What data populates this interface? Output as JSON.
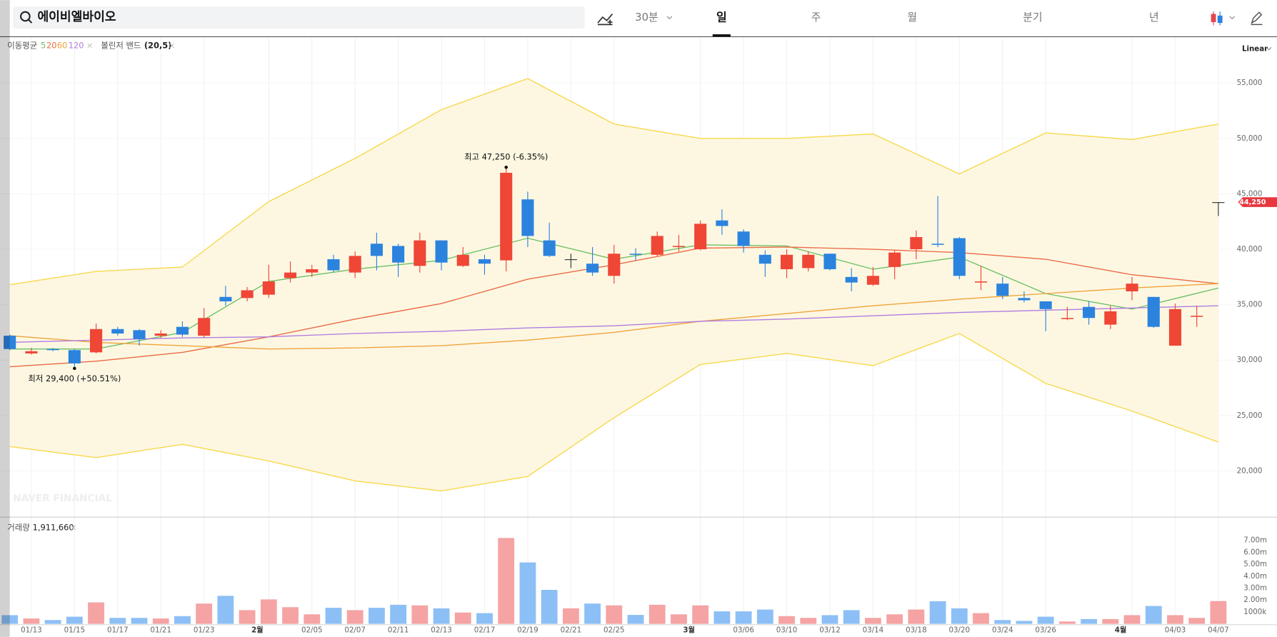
{
  "header": {
    "search": "에이비엘바이오",
    "tabs": [
      "30분",
      "일",
      "주",
      "월",
      "분기",
      "년"
    ],
    "active_tab": 1
  },
  "chart_data": {
    "type": "candlestick",
    "ma_label": "이동평균",
    "scale_label": "Linear",
    "watermark": "NAVER FINANCIAL",
    "categories": [
      null,
      "01/13",
      null,
      "01/15",
      null,
      "01/17",
      null,
      "01/21",
      null,
      "01/23",
      null,
      null,
      "2월",
      null,
      "02/05",
      null,
      "02/07",
      null,
      "02/11",
      null,
      "02/13",
      null,
      "02/17",
      null,
      "02/19",
      null,
      "02/21",
      null,
      "02/25",
      null,
      null,
      null,
      "3월",
      null,
      "03/06",
      null,
      "03/10",
      null,
      "03/12",
      null,
      "03/14",
      null,
      "03/18",
      null,
      "03/20",
      null,
      "03/24",
      null,
      "03/26",
      null,
      null,
      null,
      "4월",
      null,
      "04/03",
      null,
      "04/07"
    ],
    "open": [
      32200,
      30600,
      31000,
      30900,
      30700,
      32800,
      32700,
      32200,
      33000,
      32200,
      35700,
      35600,
      35900,
      37400,
      37900,
      39100,
      37900,
      40500,
      40300,
      38500,
      40800,
      38500,
      39100,
      39000,
      44500,
      40800,
      39100,
      38700,
      37600,
      39600,
      39500,
      40200,
      40000,
      42600,
      41600,
      39500,
      38200,
      38300,
      39600,
      37500,
      36800,
      38400,
      40000,
      40500,
      41000,
      37000,
      36900,
      35600,
      35300,
      33700,
      34800,
      33200,
      36200,
      35700,
      31300,
      33900,
      44250
    ],
    "high": [
      32300,
      31100,
      31100,
      31000,
      33300,
      33000,
      32800,
      32700,
      33500,
      34700,
      36700,
      36600,
      38600,
      38900,
      38600,
      39500,
      39800,
      41500,
      40500,
      41500,
      40800,
      40200,
      39500,
      47250,
      45200,
      42400,
      39600,
      40200,
      40400,
      40100,
      41600,
      41300,
      42600,
      43600,
      41800,
      39900,
      40000,
      39800,
      39600,
      38300,
      38400,
      39900,
      41700,
      44800,
      41100,
      38500,
      37500,
      36200,
      35300,
      34800,
      35300,
      34900,
      37500,
      35700,
      35100,
      34900,
      44250
    ],
    "low": [
      30900,
      30500,
      30800,
      29400,
      30600,
      32200,
      31300,
      32000,
      32100,
      32000,
      34900,
      35300,
      35600,
      37000,
      37500,
      37900,
      37400,
      38100,
      37500,
      37900,
      38100,
      38400,
      37700,
      38000,
      40200,
      39300,
      38300,
      37600,
      36900,
      39000,
      39400,
      39800,
      39900,
      41300,
      39700,
      37500,
      37400,
      38000,
      38100,
      36200,
      36700,
      37300,
      39100,
      40200,
      37300,
      36300,
      35500,
      35200,
      32600,
      33600,
      33200,
      32800,
      35400,
      32900,
      31300,
      33000,
      43000
    ],
    "close": [
      31000,
      30800,
      30900,
      29700,
      32800,
      32400,
      31900,
      32400,
      32300,
      33800,
      35300,
      36300,
      37100,
      37900,
      38200,
      38100,
      39400,
      39400,
      38800,
      40800,
      38800,
      39500,
      38700,
      46900,
      41200,
      39400,
      39100,
      37900,
      39600,
      39500,
      41200,
      40300,
      42300,
      42100,
      40300,
      38700,
      39500,
      39500,
      38200,
      37000,
      37600,
      39700,
      41100,
      40400,
      37600,
      37100,
      35800,
      35400,
      34600,
      33800,
      33800,
      34400,
      36900,
      33000,
      34600,
      34000,
      44250
    ],
    "up_color": "#ef4636",
    "down_color": "#2b83de",
    "flat_color": "#333333",
    "ylim": [
      15900,
      59100
    ],
    "yticks": [
      {
        "value": 20000,
        "label": "20,000"
      },
      {
        "value": 25000,
        "label": "25,000"
      },
      {
        "value": 30000,
        "label": "30,000"
      },
      {
        "value": 35000,
        "label": "35,000"
      },
      {
        "value": 40000,
        "label": "40,000"
      },
      {
        "value": 45000,
        "label": "45,000"
      },
      {
        "value": 50000,
        "label": "50,000"
      },
      {
        "value": 55000,
        "label": "55,000"
      }
    ],
    "grid": true,
    "last_price": {
      "value": 44250,
      "label": "44,250"
    },
    "high_mark": {
      "index": 23,
      "label": "최고 47,250 (-6.35%)"
    },
    "low_mark": {
      "index": 3,
      "label": "최저 29,400 (+50.51%)"
    },
    "overlay_x": [
      0,
      4,
      8,
      12,
      16,
      20,
      24,
      28,
      32,
      36,
      40,
      44,
      48,
      52,
      56
    ],
    "moving_averages": [
      {
        "name": "5",
        "color": "#6cc064",
        "values": [
          31000,
          31000,
          32500,
          37100,
          38200,
          39000,
          41000,
          39100,
          40400,
          40300,
          38200,
          39300,
          36000,
          34600,
          36500
        ]
      },
      {
        "name": "20",
        "color": "#ec6a45",
        "values": [
          29400,
          29900,
          30700,
          32100,
          33700,
          35100,
          37300,
          38600,
          40100,
          40200,
          40000,
          39700,
          39100,
          37700,
          36900
        ]
      },
      {
        "name": "60",
        "color": "#f0a43a",
        "values": [
          32200,
          31600,
          31300,
          31000,
          31100,
          31300,
          31800,
          32500,
          33500,
          34200,
          34900,
          35500,
          36000,
          36500,
          36900
        ]
      },
      {
        "name": "120",
        "color": "#b07ddf",
        "values": [
          31600,
          31800,
          32000,
          32100,
          32400,
          32600,
          32900,
          33100,
          33500,
          33700,
          34000,
          34300,
          34500,
          34700,
          34900
        ]
      }
    ],
    "bollinger": {
      "name": "볼린저 밴드",
      "params": "(20,5)",
      "color": "#f7d84a",
      "fill": "#fdf7e2",
      "upper": [
        36800,
        38000,
        38400,
        44300,
        48200,
        52600,
        55400,
        51300,
        50000,
        50000,
        50400,
        46800,
        50500,
        49900,
        51300
      ],
      "lower": [
        22200,
        21200,
        22400,
        20900,
        19100,
        18200,
        19500,
        24800,
        29600,
        30600,
        29500,
        32400,
        27900,
        25400,
        22600
      ]
    },
    "volume": {
      "label": "거래량",
      "last_label": "1,911,660",
      "up_color": "#f5a3a3",
      "down_color": "#8cbff5",
      "values": [
        0.73,
        0.45,
        0.32,
        0.6,
        1.8,
        0.5,
        0.5,
        0.45,
        0.65,
        1.7,
        2.35,
        1.15,
        2.05,
        1.4,
        0.8,
        1.35,
        1.15,
        1.35,
        1.6,
        1.55,
        1.3,
        0.95,
        0.9,
        7.2,
        5.15,
        2.85,
        1.3,
        1.7,
        1.55,
        0.75,
        1.6,
        0.8,
        1.55,
        1.05,
        1.05,
        1.2,
        0.65,
        0.5,
        0.73,
        1.15,
        0.5,
        0.8,
        1.2,
        1.9,
        1.3,
        0.9,
        0.32,
        0.25,
        0.6,
        0.2,
        0.4,
        0.4,
        0.73,
        1.5,
        0.73,
        0.5,
        1.91166
      ],
      "ylim": [
        0,
        8.6
      ],
      "yticks": [
        {
          "value": 1,
          "label": "1000k"
        },
        {
          "value": 2,
          "label": "2.00m"
        },
        {
          "value": 3,
          "label": "3.00m"
        },
        {
          "value": 4,
          "label": "4.00m"
        },
        {
          "value": 5,
          "label": "5.00m"
        },
        {
          "value": 6,
          "label": "6.00m"
        },
        {
          "value": 7,
          "label": "7.00m"
        }
      ]
    }
  }
}
